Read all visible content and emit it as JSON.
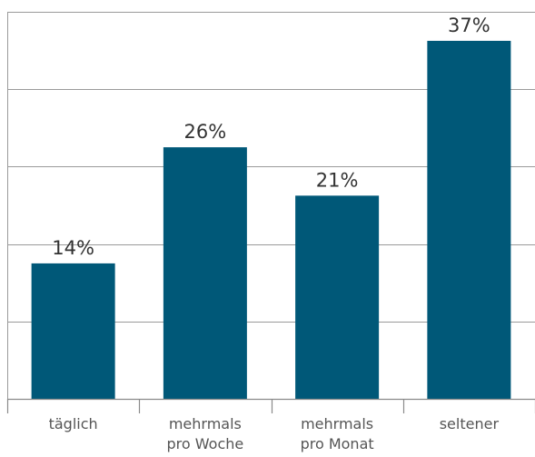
{
  "chart_data": {
    "type": "bar",
    "categories": [
      [
        "täglich"
      ],
      [
        "mehrmals",
        "pro Woche"
      ],
      [
        "mehrmals",
        "pro Monat"
      ],
      [
        "seltener"
      ]
    ],
    "values": [
      14,
      26,
      21,
      37
    ],
    "data_labels": [
      "14%",
      "26%",
      "21%",
      "37%"
    ],
    "ylim": [
      0,
      40
    ],
    "y_grid_step": 8,
    "grid": true,
    "bar_color": "#005878",
    "title": "",
    "xlabel": "",
    "ylabel": ""
  }
}
